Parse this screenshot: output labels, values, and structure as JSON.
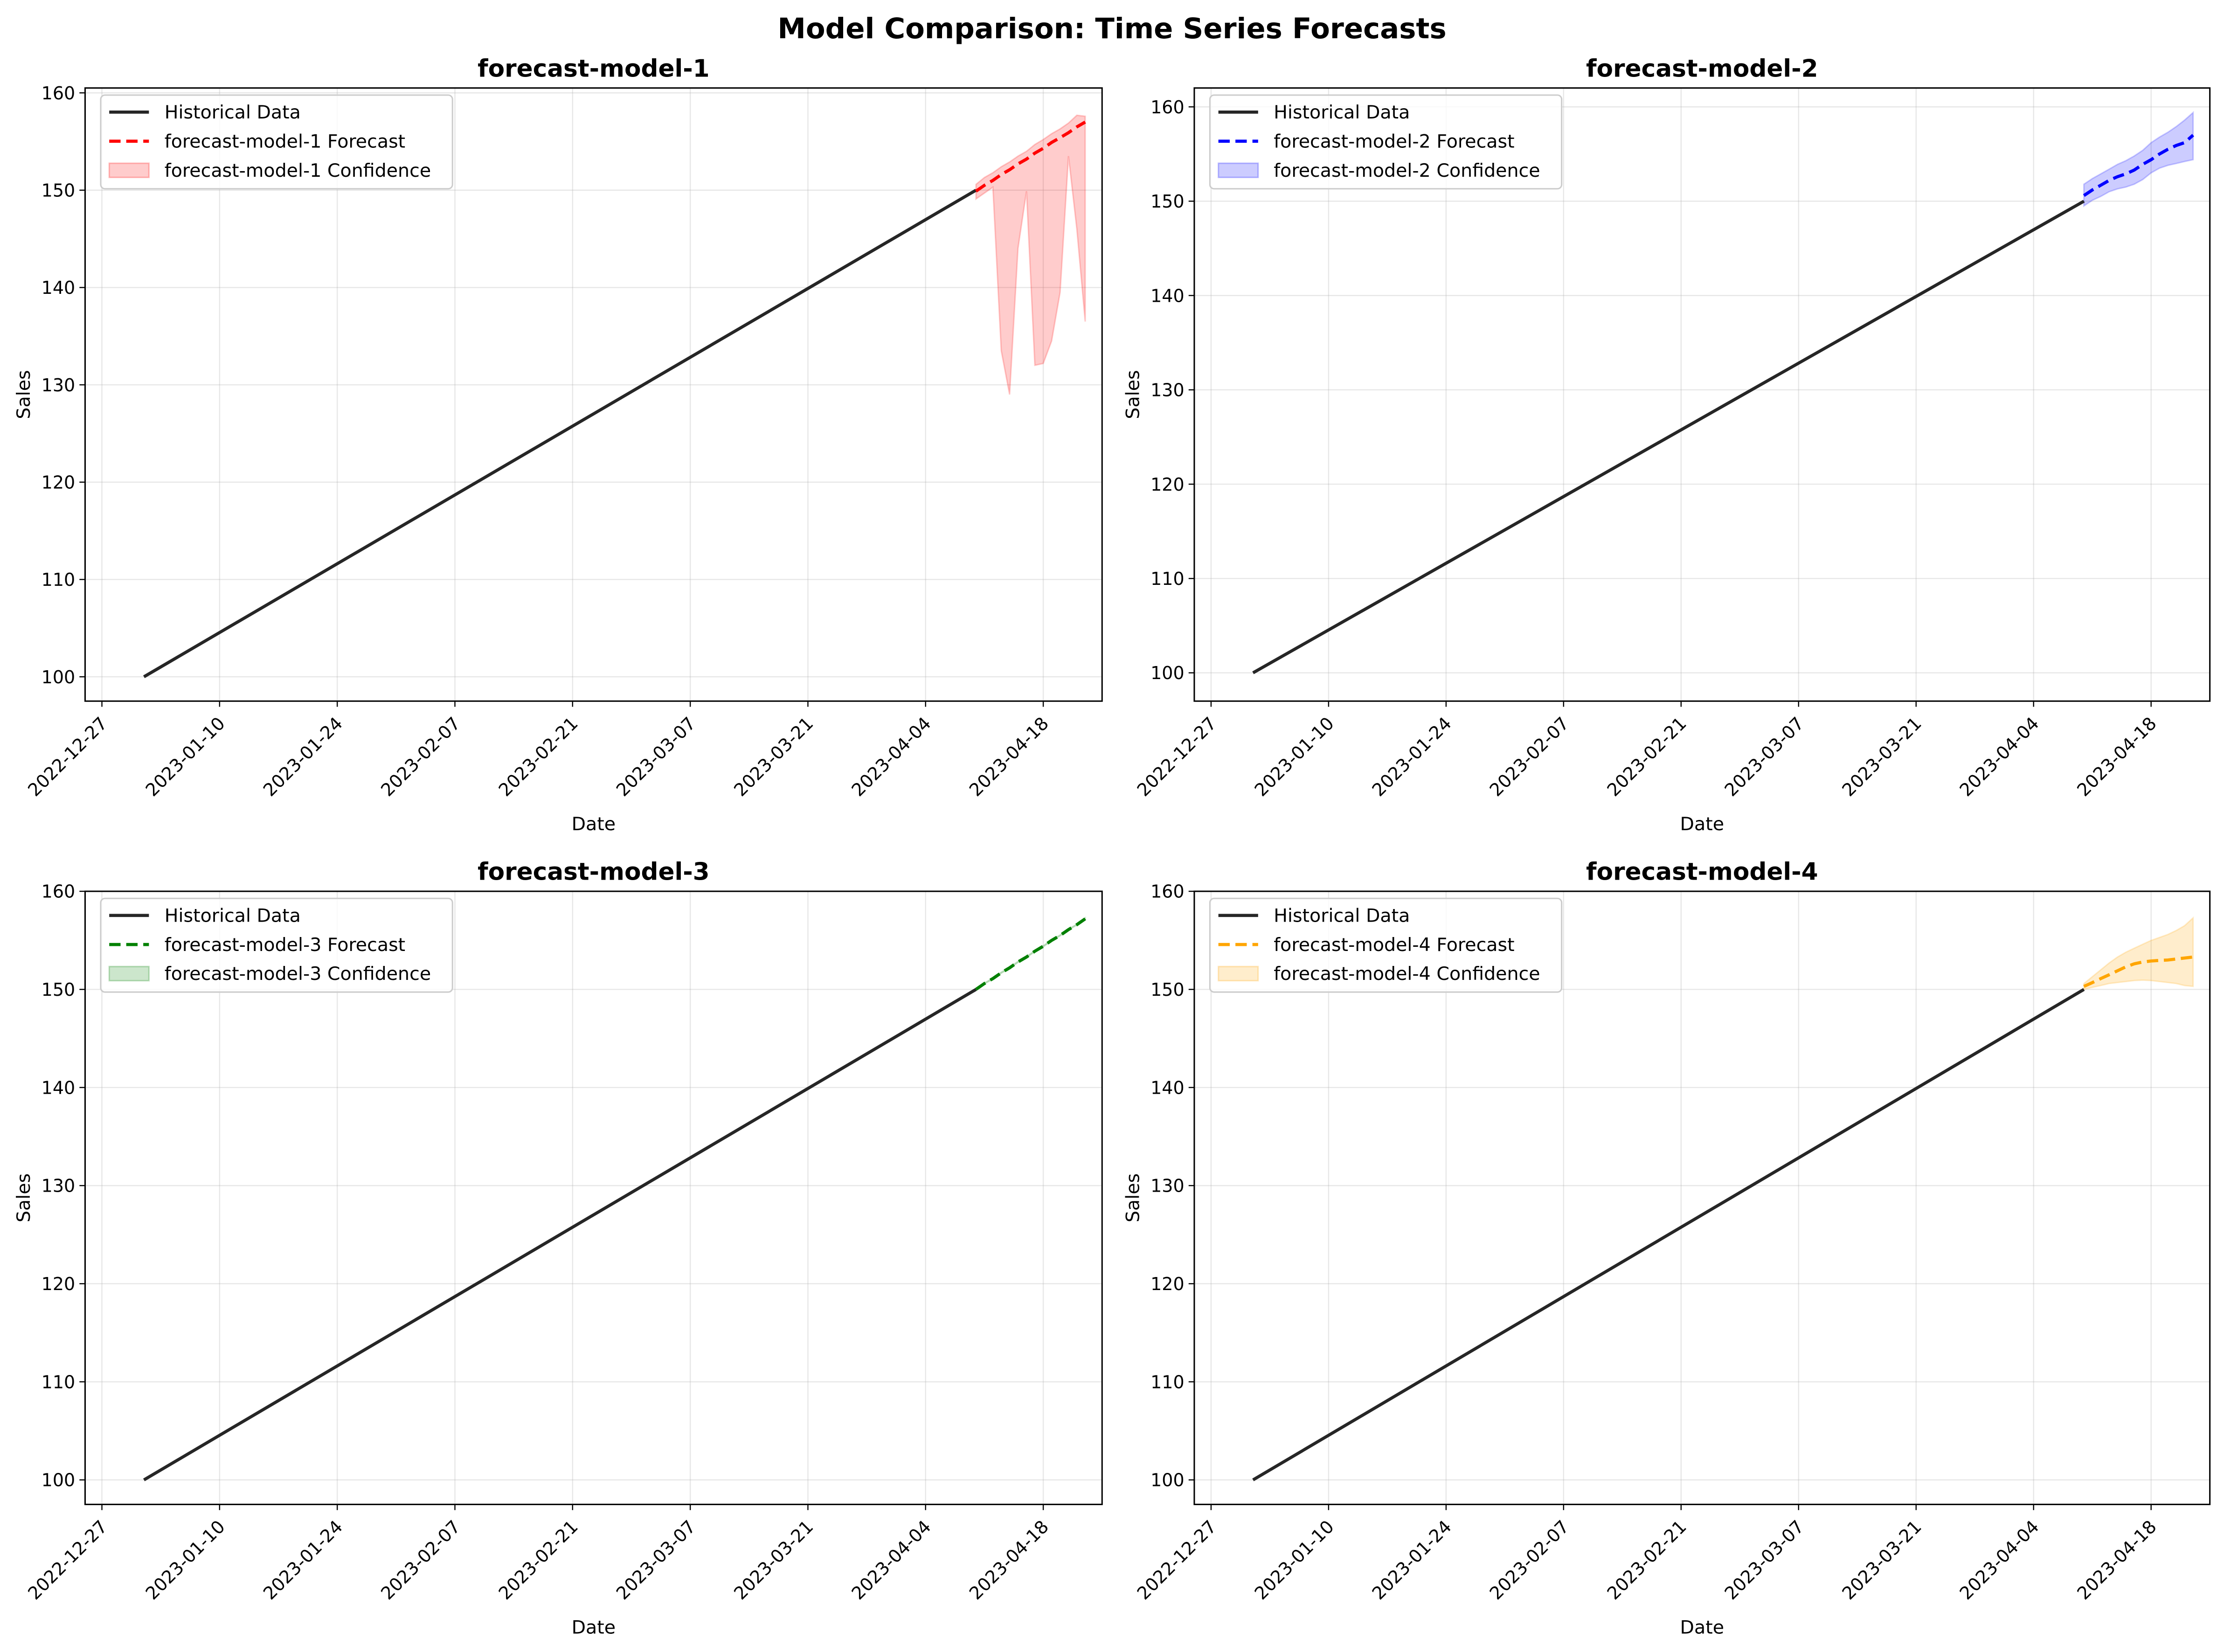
{
  "figure_title": "Model Comparison: Time Series Forecasts",
  "chart_data": [
    {
      "type": "line",
      "title": "forecast-model-1",
      "xlabel": "Date",
      "ylabel": "Sales",
      "x_ticks": [
        "2022-12-27",
        "2023-01-10",
        "2023-01-24",
        "2023-02-07",
        "2023-02-21",
        "2023-03-07",
        "2023-03-21",
        "2023-04-04",
        "2023-04-18"
      ],
      "y_ticks": [
        100,
        110,
        120,
        130,
        140,
        150,
        160
      ],
      "xlim": [
        "2022-12-25",
        "2023-04-25"
      ],
      "ylim": [
        97.5,
        160.5
      ],
      "grid": true,
      "legend_position": "top-left",
      "forecast_color": "#ff0000",
      "band_color": "#ff0000",
      "historical": {
        "name": "Historical Data",
        "x_start": "2023-01-01",
        "x_end": "2023-04-10",
        "y_start": 100,
        "y_end": 150
      },
      "forecast": {
        "name": "forecast-model-1 Forecast",
        "x": [
          "2023-04-10",
          "2023-04-11",
          "2023-04-12",
          "2023-04-13",
          "2023-04-14",
          "2023-04-15",
          "2023-04-16",
          "2023-04-17",
          "2023-04-18",
          "2023-04-19",
          "2023-04-20",
          "2023-04-21",
          "2023-04-22",
          "2023-04-23"
        ],
        "y": [
          149.9,
          150.5,
          151.0,
          151.6,
          152.1,
          152.7,
          153.2,
          153.8,
          154.3,
          154.9,
          155.4,
          155.9,
          156.5,
          157.0
        ]
      },
      "confidence": {
        "name": "forecast-model-1 Confidence",
        "x": [
          "2023-04-10",
          "2023-04-11",
          "2023-04-12",
          "2023-04-13",
          "2023-04-14",
          "2023-04-15",
          "2023-04-16",
          "2023-04-17",
          "2023-04-18",
          "2023-04-19",
          "2023-04-20",
          "2023-04-21",
          "2023-04-22",
          "2023-04-23"
        ],
        "lower": [
          149.1,
          149.7,
          150.3,
          133.5,
          129.0,
          144.0,
          149.9,
          132.0,
          132.2,
          134.5,
          139.5,
          153.5,
          146.0,
          136.5
        ],
        "upper": [
          150.6,
          151.3,
          151.8,
          152.4,
          152.9,
          153.5,
          154.0,
          154.7,
          155.2,
          155.8,
          156.3,
          156.9,
          157.7,
          157.6
        ]
      }
    },
    {
      "type": "line",
      "title": "forecast-model-2",
      "xlabel": "Date",
      "ylabel": "Sales",
      "x_ticks": [
        "2022-12-27",
        "2023-01-10",
        "2023-01-24",
        "2023-02-07",
        "2023-02-21",
        "2023-03-07",
        "2023-03-21",
        "2023-04-04",
        "2023-04-18"
      ],
      "y_ticks": [
        100,
        110,
        120,
        130,
        140,
        150,
        160
      ],
      "xlim": [
        "2022-12-25",
        "2023-04-25"
      ],
      "ylim": [
        97.0,
        162.0
      ],
      "grid": true,
      "legend_position": "top-left",
      "forecast_color": "#0000ff",
      "band_color": "#0000ff",
      "historical": {
        "name": "Historical Data",
        "x_start": "2023-01-01",
        "x_end": "2023-04-10",
        "y_start": 100,
        "y_end": 150
      },
      "forecast": {
        "name": "forecast-model-2 Forecast",
        "x": [
          "2023-04-10",
          "2023-04-11",
          "2023-04-12",
          "2023-04-13",
          "2023-04-14",
          "2023-04-15",
          "2023-04-16",
          "2023-04-17",
          "2023-04-18",
          "2023-04-19",
          "2023-04-20",
          "2023-04-21",
          "2023-04-22",
          "2023-04-23"
        ],
        "y": [
          150.6,
          151.2,
          151.7,
          152.2,
          152.6,
          152.9,
          153.3,
          153.9,
          154.4,
          155.0,
          155.5,
          155.9,
          156.2,
          157.0
        ]
      },
      "confidence": {
        "name": "forecast-model-2 Confidence",
        "x": [
          "2023-04-10",
          "2023-04-11",
          "2023-04-12",
          "2023-04-13",
          "2023-04-14",
          "2023-04-15",
          "2023-04-16",
          "2023-04-17",
          "2023-04-18",
          "2023-04-19",
          "2023-04-20",
          "2023-04-21",
          "2023-04-22",
          "2023-04-23"
        ],
        "lower": [
          149.5,
          150.1,
          150.5,
          151.0,
          151.3,
          151.5,
          151.8,
          152.3,
          153.0,
          153.5,
          153.8,
          154.0,
          154.2,
          154.4
        ],
        "upper": [
          151.8,
          152.4,
          152.9,
          153.4,
          153.9,
          154.3,
          154.8,
          155.4,
          156.2,
          156.8,
          157.3,
          157.9,
          158.6,
          159.4
        ]
      }
    },
    {
      "type": "line",
      "title": "forecast-model-3",
      "xlabel": "Date",
      "ylabel": "Sales",
      "x_ticks": [
        "2022-12-27",
        "2023-01-10",
        "2023-01-24",
        "2023-02-07",
        "2023-02-21",
        "2023-03-07",
        "2023-03-21",
        "2023-04-04",
        "2023-04-18"
      ],
      "y_ticks": [
        100,
        110,
        120,
        130,
        140,
        150,
        160
      ],
      "xlim": [
        "2022-12-25",
        "2023-04-25"
      ],
      "ylim": [
        97.5,
        160.0
      ],
      "grid": true,
      "legend_position": "top-left",
      "forecast_color": "#008000",
      "band_color": "#008000",
      "historical": {
        "name": "Historical Data",
        "x_start": "2023-01-01",
        "x_end": "2023-04-10",
        "y_start": 100,
        "y_end": 150
      },
      "forecast": {
        "name": "forecast-model-3 Forecast",
        "x": [
          "2023-04-10",
          "2023-04-11",
          "2023-04-12",
          "2023-04-13",
          "2023-04-14",
          "2023-04-15",
          "2023-04-16",
          "2023-04-17",
          "2023-04-18",
          "2023-04-19",
          "2023-04-20",
          "2023-04-21",
          "2023-04-22",
          "2023-04-23"
        ],
        "y": [
          150.0,
          150.6,
          151.1,
          151.7,
          152.2,
          152.8,
          153.3,
          153.9,
          154.4,
          155.0,
          155.5,
          156.1,
          156.6,
          157.2
        ]
      },
      "confidence": {
        "name": "forecast-model-3 Confidence",
        "x": [
          "2023-04-10",
          "2023-04-11",
          "2023-04-12",
          "2023-04-13",
          "2023-04-14",
          "2023-04-15",
          "2023-04-16",
          "2023-04-17",
          "2023-04-18",
          "2023-04-19",
          "2023-04-20",
          "2023-04-21",
          "2023-04-22",
          "2023-04-23"
        ],
        "lower": [
          149.95,
          150.55,
          151.05,
          151.65,
          152.15,
          152.75,
          153.25,
          153.85,
          154.35,
          154.95,
          155.45,
          156.05,
          156.55,
          157.1
        ],
        "upper": [
          150.05,
          150.65,
          151.15,
          151.75,
          152.25,
          152.85,
          153.35,
          153.95,
          154.45,
          155.05,
          155.55,
          156.15,
          156.65,
          157.3
        ]
      }
    },
    {
      "type": "line",
      "title": "forecast-model-4",
      "xlabel": "Date",
      "ylabel": "Sales",
      "x_ticks": [
        "2022-12-27",
        "2023-01-10",
        "2023-01-24",
        "2023-02-07",
        "2023-02-21",
        "2023-03-07",
        "2023-03-21",
        "2023-04-04",
        "2023-04-18"
      ],
      "y_ticks": [
        100,
        110,
        120,
        130,
        140,
        150,
        160
      ],
      "xlim": [
        "2022-12-25",
        "2023-04-25"
      ],
      "ylim": [
        97.5,
        160.0
      ],
      "grid": true,
      "legend_position": "top-left",
      "forecast_color": "#ffa500",
      "band_color": "#ffa500",
      "historical": {
        "name": "Historical Data",
        "x_start": "2023-01-01",
        "x_end": "2023-04-10",
        "y_start": 100,
        "y_end": 150
      },
      "forecast": {
        "name": "forecast-model-4 Forecast",
        "x": [
          "2023-04-10",
          "2023-04-11",
          "2023-04-12",
          "2023-04-13",
          "2023-04-14",
          "2023-04-15",
          "2023-04-16",
          "2023-04-17",
          "2023-04-18",
          "2023-04-19",
          "2023-04-20",
          "2023-04-21",
          "2023-04-22",
          "2023-04-23"
        ],
        "y": [
          150.3,
          150.7,
          151.1,
          151.5,
          151.9,
          152.3,
          152.6,
          152.8,
          152.9,
          152.95,
          153.0,
          153.1,
          153.2,
          153.3
        ]
      },
      "confidence": {
        "name": "forecast-model-4 Confidence",
        "x": [
          "2023-04-10",
          "2023-04-11",
          "2023-04-12",
          "2023-04-13",
          "2023-04-14",
          "2023-04-15",
          "2023-04-16",
          "2023-04-17",
          "2023-04-18",
          "2023-04-19",
          "2023-04-20",
          "2023-04-21",
          "2023-04-22",
          "2023-04-23"
        ],
        "lower": [
          150.0,
          150.2,
          150.4,
          150.6,
          150.7,
          150.8,
          150.9,
          150.95,
          150.9,
          150.8,
          150.7,
          150.6,
          150.4,
          150.3
        ],
        "upper": [
          150.6,
          151.3,
          152.0,
          152.7,
          153.3,
          153.8,
          154.2,
          154.6,
          155.0,
          155.3,
          155.6,
          156.0,
          156.5,
          157.3
        ]
      }
    }
  ]
}
